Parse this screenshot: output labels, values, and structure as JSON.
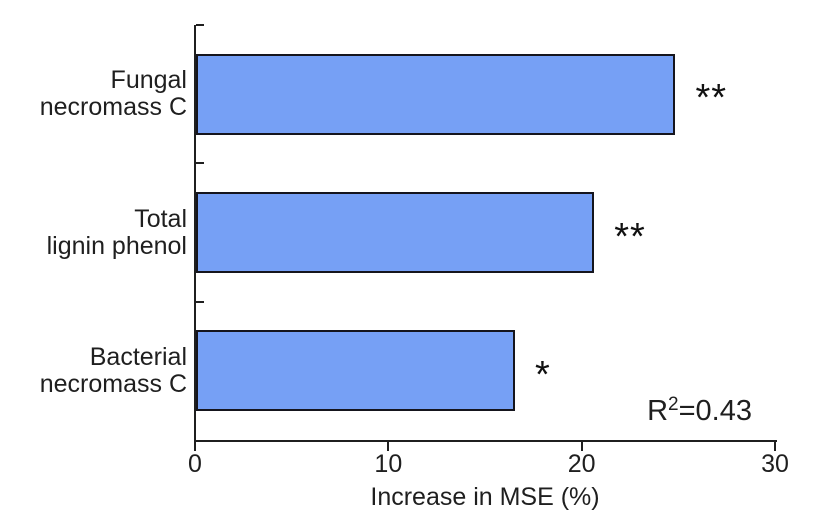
{
  "figure": {
    "background": "#ffffff",
    "annotation": {
      "prefix": "R",
      "exponent": "2",
      "suffix": "=0.43"
    }
  },
  "chart_data": {
    "type": "bar",
    "orientation": "horizontal",
    "title": "",
    "xlabel": "Increase in MSE (%)",
    "ylabel": "",
    "xlim": [
      0,
      30
    ],
    "xticks": [
      "0",
      "10",
      "20",
      "30"
    ],
    "grid": false,
    "legend": false,
    "categories": [
      "Fungal\nnecromass C",
      "Total\nlignin phenol",
      "Bacterial\nnecromass C"
    ],
    "values": [
      24.8,
      20.6,
      16.5
    ],
    "significance": [
      "**",
      "**",
      "*"
    ],
    "annotation": "R²=0.43",
    "colors": {
      "bar_fill": "#76A0F5",
      "bar_border": "#15151d",
      "axis": "#1f1f1f",
      "text": "#1f1f1f"
    }
  }
}
